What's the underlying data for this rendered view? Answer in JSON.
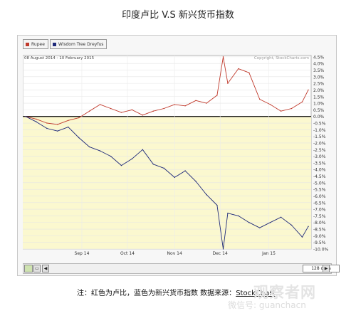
{
  "title": "印度卢比 V.S 新兴货币指数",
  "legend": [
    {
      "name": "Rupee",
      "color": "#c0392b"
    },
    {
      "name": "Wisdom Tree Dreyfus",
      "color": "#1f2a7a"
    }
  ],
  "date_range": "08 August 2014 - 10 February 2015",
  "copyright": "Copyright, StockCharts.com",
  "navigator": {
    "days": "128 days",
    "left_arrow": "◀",
    "right_arrow": "▶"
  },
  "caption": {
    "text": "注：红色为卢比，蓝色为新兴货币指数 数据来源：",
    "source": "StockChart"
  },
  "watermark": {
    "brand": "观察者网",
    "wechat": "微信号: guanchacn"
  },
  "chart_data": {
    "type": "line",
    "title": "印度卢比 V.S 新兴货币指数",
    "x_tick_labels": [
      "Sep 14",
      "Oct 14",
      "Nov 14",
      "Dec 14",
      "Jan 15"
    ],
    "y_tick_labels": [
      "4.5%",
      "4.0%",
      "3.5%",
      "3.0%",
      "2.5%",
      "2.0%",
      "1.5%",
      "1.0%",
      "0.5%",
      "0.0%",
      "-0.5%",
      "-1.0%",
      "-1.5%",
      "-2.0%",
      "-2.5%",
      "-3.0%",
      "-3.5%",
      "-4.0%",
      "-4.5%",
      "-5.0%",
      "-5.5%",
      "-6.0%",
      "-6.5%",
      "-7.0%",
      "-7.5%",
      "-8.0%",
      "-8.5%",
      "-9.0%",
      "-9.5%",
      "-10.0%"
    ],
    "ylim": [
      -10.0,
      4.6
    ],
    "grid": true,
    "negative_band_color": "#fbf8cf",
    "x": [
      "2014-08-08",
      "2014-08-15",
      "2014-08-22",
      "2014-08-29",
      "2014-09-05",
      "2014-09-12",
      "2014-09-19",
      "2014-09-26",
      "2014-10-03",
      "2014-10-10",
      "2014-10-17",
      "2014-10-24",
      "2014-10-31",
      "2014-11-07",
      "2014-11-14",
      "2014-11-21",
      "2014-11-28",
      "2014-12-05",
      "2014-12-12",
      "2014-12-16",
      "2014-12-19",
      "2014-12-26",
      "2015-01-02",
      "2015-01-09",
      "2015-01-16",
      "2015-01-23",
      "2015-01-30",
      "2015-02-06",
      "2015-02-10"
    ],
    "series": [
      {
        "name": "Rupee",
        "color": "#c0392b",
        "values": [
          0.0,
          -0.2,
          -0.5,
          -0.6,
          -0.3,
          -0.1,
          0.4,
          0.9,
          0.6,
          0.3,
          0.5,
          0.1,
          0.4,
          0.6,
          0.9,
          0.8,
          1.2,
          1.0,
          1.6,
          4.5,
          2.5,
          3.6,
          3.3,
          1.3,
          0.9,
          0.4,
          0.6,
          1.1,
          2.0
        ]
      },
      {
        "name": "Wisdom Tree Dreyfus",
        "color": "#1f2a7a",
        "values": [
          0.0,
          -0.4,
          -0.9,
          -1.1,
          -0.8,
          -1.6,
          -2.3,
          -2.6,
          -3.0,
          -3.7,
          -3.2,
          -2.5,
          -3.6,
          -3.9,
          -4.6,
          -4.1,
          -4.9,
          -5.9,
          -6.7,
          -10.0,
          -7.3,
          -7.5,
          -8.0,
          -8.4,
          -8.0,
          -7.6,
          -8.2,
          -9.1,
          -8.3
        ]
      }
    ]
  }
}
